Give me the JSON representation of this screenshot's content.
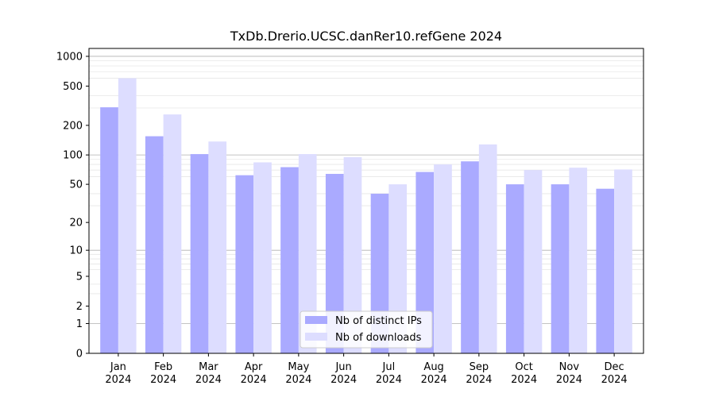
{
  "chart_data": {
    "type": "bar",
    "title": "TxDb.Drerio.UCSC.danRer10.refGene 2024",
    "xlabel": "",
    "ylabel": "",
    "y_scale": "log(1+y)",
    "ylim": [
      0,
      1000
    ],
    "y_ticks": [
      0,
      1,
      2,
      5,
      10,
      20,
      50,
      100,
      200,
      500,
      1000
    ],
    "y_tick_labels": [
      "0",
      "1",
      "2",
      "5",
      "10",
      "20",
      "50",
      "100",
      "200",
      "500",
      "1000"
    ],
    "grid": true,
    "legend_position": "bottom-center",
    "categories": [
      "Jan",
      "Feb",
      "Mar",
      "Apr",
      "May",
      "Jun",
      "Jul",
      "Aug",
      "Sep",
      "Oct",
      "Nov",
      "Dec"
    ],
    "category_sublabels": [
      "2024",
      "2024",
      "2024",
      "2024",
      "2024",
      "2024",
      "2024",
      "2024",
      "2024",
      "2024",
      "2024",
      "2024"
    ],
    "series": [
      {
        "name": "Nb of distinct IPs",
        "color": "#aaaaff",
        "values": [
          305,
          155,
          102,
          62,
          75,
          64,
          40,
          67,
          86,
          50,
          50,
          45
        ]
      },
      {
        "name": "Nb of downloads",
        "color": "#ddddff",
        "values": [
          600,
          258,
          137,
          84,
          102,
          95,
          50,
          80,
          128,
          70,
          74,
          71
        ]
      }
    ]
  }
}
